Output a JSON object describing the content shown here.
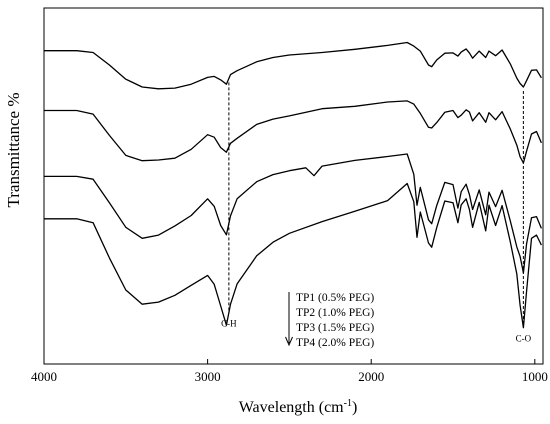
{
  "chart_data": {
    "type": "line",
    "xlabel": "Wavelength (cm",
    "xlabel_sup": "-1",
    "xlabel_close": ")",
    "ylabel": "Transmittance  %",
    "xlim": [
      4000,
      950
    ],
    "x_reversed": true,
    "y_ticks_shown": false,
    "ylim": [
      0,
      100
    ],
    "grid": false,
    "xticks": [
      {
        "value": 4000,
        "label": "4000"
      },
      {
        "value": 3000,
        "label": "3000"
      },
      {
        "value": 2000,
        "label": "2000"
      },
      {
        "value": 1000,
        "label": "1000"
      }
    ],
    "series": [
      {
        "name": "TP1 (0.5% PEG)",
        "values": [
          [
            4000,
            88
          ],
          [
            3800,
            88
          ],
          [
            3700,
            87.5
          ],
          [
            3600,
            84
          ],
          [
            3500,
            80
          ],
          [
            3400,
            77.8
          ],
          [
            3300,
            77.3
          ],
          [
            3200,
            77.5
          ],
          [
            3100,
            78.6
          ],
          [
            3000,
            80.5
          ],
          [
            2960,
            80.8
          ],
          [
            2920,
            79.8
          ],
          [
            2885,
            78.6
          ],
          [
            2860,
            81.3
          ],
          [
            2820,
            82.4
          ],
          [
            2700,
            84.9
          ],
          [
            2600,
            86.1
          ],
          [
            2500,
            86.8
          ],
          [
            2300,
            87.5
          ],
          [
            2100,
            88.4
          ],
          [
            1900,
            89.5
          ],
          [
            1780,
            90.3
          ],
          [
            1740,
            89.3
          ],
          [
            1700,
            87.9
          ],
          [
            1650,
            84
          ],
          [
            1630,
            83.5
          ],
          [
            1600,
            85.4
          ],
          [
            1550,
            87.3
          ],
          [
            1500,
            87.4
          ],
          [
            1470,
            86.5
          ],
          [
            1450,
            87.6
          ],
          [
            1420,
            88.5
          ],
          [
            1400,
            87.4
          ],
          [
            1380,
            85.9
          ],
          [
            1340,
            87.9
          ],
          [
            1300,
            86.1
          ],
          [
            1280,
            87.9
          ],
          [
            1240,
            86.6
          ],
          [
            1200,
            88.2
          ],
          [
            1150,
            84.3
          ],
          [
            1110,
            80.3
          ],
          [
            1090,
            78.8
          ],
          [
            1070,
            77.8
          ],
          [
            1050,
            79.6
          ],
          [
            1020,
            82.5
          ],
          [
            990,
            82.6
          ],
          [
            960,
            80.4
          ]
        ]
      },
      {
        "name": "TP2 (1.0% PEG)",
        "values": [
          [
            4000,
            71.2
          ],
          [
            3800,
            71.2
          ],
          [
            3700,
            70.2
          ],
          [
            3600,
            64.2
          ],
          [
            3500,
            58.6
          ],
          [
            3400,
            57.1
          ],
          [
            3300,
            57.3
          ],
          [
            3200,
            57.8
          ],
          [
            3100,
            60.3
          ],
          [
            3000,
            64.4
          ],
          [
            2960,
            63.7
          ],
          [
            2920,
            60.8
          ],
          [
            2885,
            59.5
          ],
          [
            2860,
            62
          ],
          [
            2820,
            63.4
          ],
          [
            2700,
            67.3
          ],
          [
            2600,
            68.8
          ],
          [
            2500,
            69.7
          ],
          [
            2300,
            71.7
          ],
          [
            2100,
            72.4
          ],
          [
            1900,
            73.6
          ],
          [
            1780,
            73.9
          ],
          [
            1740,
            73
          ],
          [
            1700,
            70.4
          ],
          [
            1650,
            66.5
          ],
          [
            1630,
            66.3
          ],
          [
            1600,
            67.8
          ],
          [
            1550,
            70.7
          ],
          [
            1500,
            71.2
          ],
          [
            1470,
            69.2
          ],
          [
            1450,
            69.9
          ],
          [
            1420,
            71.4
          ],
          [
            1400,
            70.8
          ],
          [
            1380,
            68.3
          ],
          [
            1340,
            70.6
          ],
          [
            1300,
            67.9
          ],
          [
            1280,
            70.6
          ],
          [
            1240,
            68.6
          ],
          [
            1200,
            70.9
          ],
          [
            1150,
            66
          ],
          [
            1110,
            61.5
          ],
          [
            1090,
            58.2
          ],
          [
            1070,
            56.5
          ],
          [
            1050,
            59.8
          ],
          [
            1020,
            64.6
          ],
          [
            990,
            65.3
          ],
          [
            960,
            62.1
          ]
        ]
      },
      {
        "name": "TP3 (1.5% PEG)",
        "values": [
          [
            4000,
            52.7
          ],
          [
            3800,
            52.7
          ],
          [
            3700,
            51.9
          ],
          [
            3600,
            45.3
          ],
          [
            3500,
            38.4
          ],
          [
            3400,
            35.3
          ],
          [
            3300,
            36.2
          ],
          [
            3200,
            38.8
          ],
          [
            3100,
            41.7
          ],
          [
            3000,
            46.4
          ],
          [
            2960,
            44.3
          ],
          [
            2920,
            38.9
          ],
          [
            2885,
            36.3
          ],
          [
            2860,
            41.6
          ],
          [
            2820,
            46.4
          ],
          [
            2700,
            51.2
          ],
          [
            2600,
            53.2
          ],
          [
            2500,
            54.3
          ],
          [
            2400,
            55.1
          ],
          [
            2350,
            52.9
          ],
          [
            2300,
            55.6
          ],
          [
            2100,
            57.2
          ],
          [
            1900,
            58.3
          ],
          [
            1780,
            59
          ],
          [
            1740,
            53.3
          ],
          [
            1720,
            44.6
          ],
          [
            1700,
            49.6
          ],
          [
            1650,
            40.5
          ],
          [
            1630,
            39.4
          ],
          [
            1600,
            44.5
          ],
          [
            1550,
            51
          ],
          [
            1500,
            50.4
          ],
          [
            1470,
            43.8
          ],
          [
            1450,
            48.4
          ],
          [
            1420,
            50.5
          ],
          [
            1400,
            47.6
          ],
          [
            1380,
            43.4
          ],
          [
            1340,
            48.9
          ],
          [
            1300,
            41.9
          ],
          [
            1280,
            48.3
          ],
          [
            1240,
            44.2
          ],
          [
            1200,
            48.8
          ],
          [
            1150,
            40.2
          ],
          [
            1110,
            32.9
          ],
          [
            1090,
            30.2
          ],
          [
            1070,
            25.6
          ],
          [
            1050,
            33.8
          ],
          [
            1020,
            41.1
          ],
          [
            990,
            41.4
          ],
          [
            960,
            38.1
          ]
        ]
      },
      {
        "name": "TP4 (2.0% PEG)",
        "values": [
          [
            4000,
            40.8
          ],
          [
            3800,
            40.8
          ],
          [
            3700,
            39.7
          ],
          [
            3600,
            29.8
          ],
          [
            3500,
            20.8
          ],
          [
            3400,
            16.8
          ],
          [
            3300,
            17.4
          ],
          [
            3200,
            19.3
          ],
          [
            3100,
            22.1
          ],
          [
            3000,
            24.9
          ],
          [
            2960,
            22.4
          ],
          [
            2920,
            16.3
          ],
          [
            2885,
            10.9
          ],
          [
            2860,
            16.8
          ],
          [
            2820,
            22.5
          ],
          [
            2700,
            30.4
          ],
          [
            2600,
            34.2
          ],
          [
            2500,
            36.7
          ],
          [
            2300,
            40
          ],
          [
            2100,
            42.9
          ],
          [
            1900,
            45.9
          ],
          [
            1780,
            50.7
          ],
          [
            1740,
            45.6
          ],
          [
            1720,
            35.6
          ],
          [
            1700,
            42.7
          ],
          [
            1650,
            34
          ],
          [
            1630,
            32.8
          ],
          [
            1600,
            38.3
          ],
          [
            1550,
            45.8
          ],
          [
            1500,
            45.3
          ],
          [
            1470,
            39.7
          ],
          [
            1450,
            44.7
          ],
          [
            1420,
            46.4
          ],
          [
            1400,
            43.4
          ],
          [
            1380,
            38.4
          ],
          [
            1340,
            45.4
          ],
          [
            1300,
            37.4
          ],
          [
            1280,
            44.6
          ],
          [
            1240,
            38.9
          ],
          [
            1200,
            44.5
          ],
          [
            1150,
            34.3
          ],
          [
            1110,
            25.3
          ],
          [
            1090,
            16.5
          ],
          [
            1070,
            10.2
          ],
          [
            1050,
            20.5
          ],
          [
            1020,
            35.3
          ],
          [
            990,
            36.2
          ],
          [
            960,
            33.4
          ]
        ]
      }
    ],
    "annotations": [
      {
        "label": "C-H",
        "x": 2870
      },
      {
        "label": "C-O",
        "x": 1070
      }
    ],
    "legend": {
      "placement": "bottom-center",
      "entries": [
        "TP1  (0.5% PEG)",
        "TP2  (1.0% PEG)",
        "TP3  (1.5% PEG)",
        "TP4  (2.0% PEG)"
      ]
    }
  }
}
